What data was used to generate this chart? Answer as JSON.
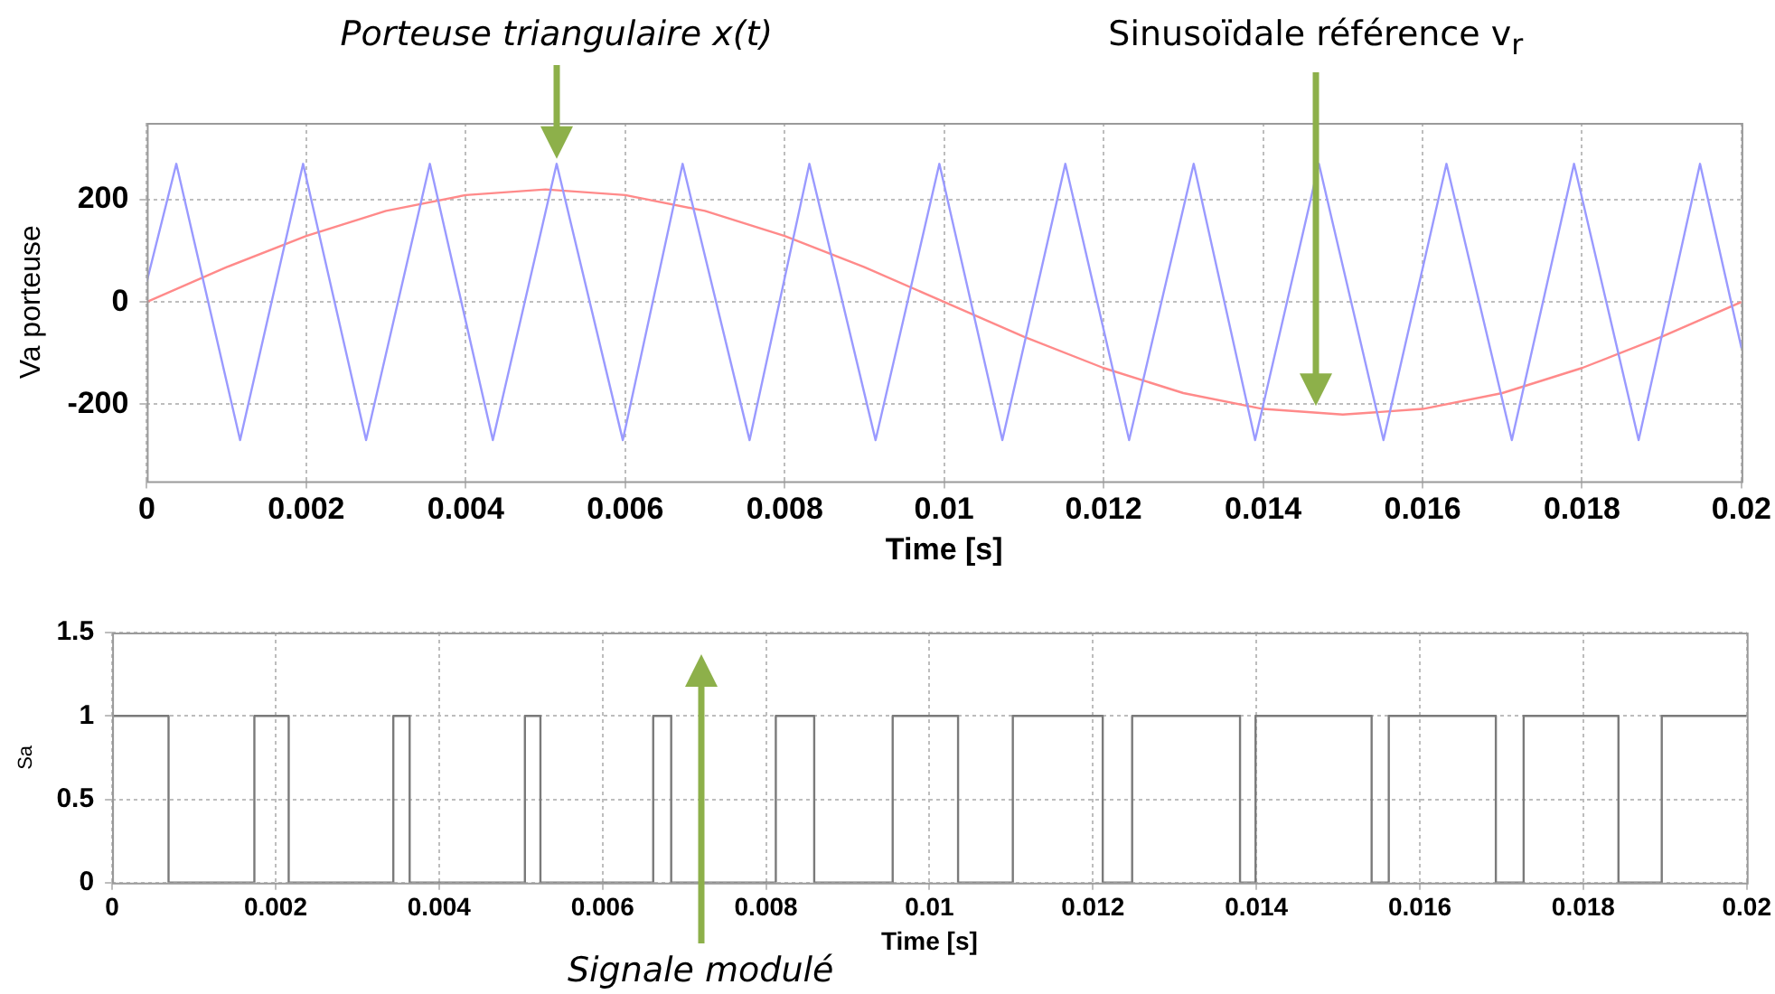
{
  "chart_data": [
    {
      "type": "line",
      "xlabel": "Time [s]",
      "ylabel": "Va porteuse",
      "xlim": [
        0,
        0.02
      ],
      "xticks": [
        0,
        0.002,
        0.004,
        0.006,
        0.008,
        0.01,
        0.012,
        0.014,
        0.016,
        0.018,
        0.02
      ],
      "ylim": [
        -350,
        350
      ],
      "yticks": [
        -200,
        0,
        200
      ],
      "grid": true,
      "marker": "none",
      "line_style": "solid",
      "annotations": [
        "Porteuse triangulaire x(t)",
        "Sinusoïdale référence v$_{r}$"
      ],
      "series": [
        {
          "color": "#9a9aff",
          "x": [
            0,
            0.00037,
            0.00117,
            0.00196,
            0.00275,
            0.00355,
            0.00434,
            0.00514,
            0.00597,
            0.00672,
            0.00756,
            0.00831,
            0.00914,
            0.00994,
            0.01073,
            0.01152,
            0.01232,
            0.01313,
            0.0139,
            0.0147,
            0.01551,
            0.0163,
            0.01712,
            0.0179,
            0.01871,
            0.01948,
            0.02
          ],
          "values": [
            40,
            270,
            -270,
            270,
            -270,
            270,
            -270,
            270,
            -270,
            270,
            -270,
            270,
            -270,
            270,
            -270,
            270,
            -270,
            270,
            -270,
            270,
            -270,
            270,
            -270,
            270,
            -270,
            270,
            -90
          ]
        },
        {
          "color": "#ff8a8a",
          "x": [
            0,
            0.001,
            0.002,
            0.003,
            0.004,
            0.005,
            0.006,
            0.007,
            0.008,
            0.009,
            0.01,
            0.011,
            0.012,
            0.013,
            0.014,
            0.015,
            0.016,
            0.017,
            0.018,
            0.019,
            0.02
          ],
          "values": [
            0,
            68,
            129,
            178,
            209,
            220,
            209,
            178,
            129,
            68,
            0,
            -68,
            -129,
            -178,
            -209,
            -220,
            -209,
            -178,
            -129,
            -68,
            0
          ]
        }
      ]
    },
    {
      "type": "step",
      "xlabel": "Time [s]",
      "ylabel": "Sa",
      "xlim": [
        0,
        0.02
      ],
      "xticks": [
        0,
        0.002,
        0.004,
        0.006,
        0.008,
        0.01,
        0.012,
        0.014,
        0.016,
        0.018,
        0.02
      ],
      "ylim": [
        0,
        1.5
      ],
      "yticks": [
        0,
        0.5,
        1,
        1.5
      ],
      "grid": true,
      "marker": "none",
      "line_style": "solid",
      "annotations": [
        "Signale modulé"
      ],
      "series": [
        {
          "color": "#7a7a7a",
          "x": [
            0,
            0.00069,
            0.00174,
            0.00216,
            0.00344,
            0.00364,
            0.00505,
            0.00524,
            0.00662,
            0.00684,
            0.00812,
            0.00859,
            0.00955,
            0.01035,
            0.01102,
            0.01212,
            0.01248,
            0.0138,
            0.01399,
            0.01541,
            0.01562,
            0.01693,
            0.01727,
            0.01843,
            0.01896,
            0.01984,
            0.02
          ],
          "values": [
            0,
            1,
            0,
            1,
            0,
            1,
            0,
            1,
            0,
            1,
            0,
            1,
            0,
            1,
            0,
            1,
            0,
            1,
            0,
            1,
            0,
            1,
            0,
            1,
            0,
            1,
            1
          ]
        }
      ]
    }
  ]
}
